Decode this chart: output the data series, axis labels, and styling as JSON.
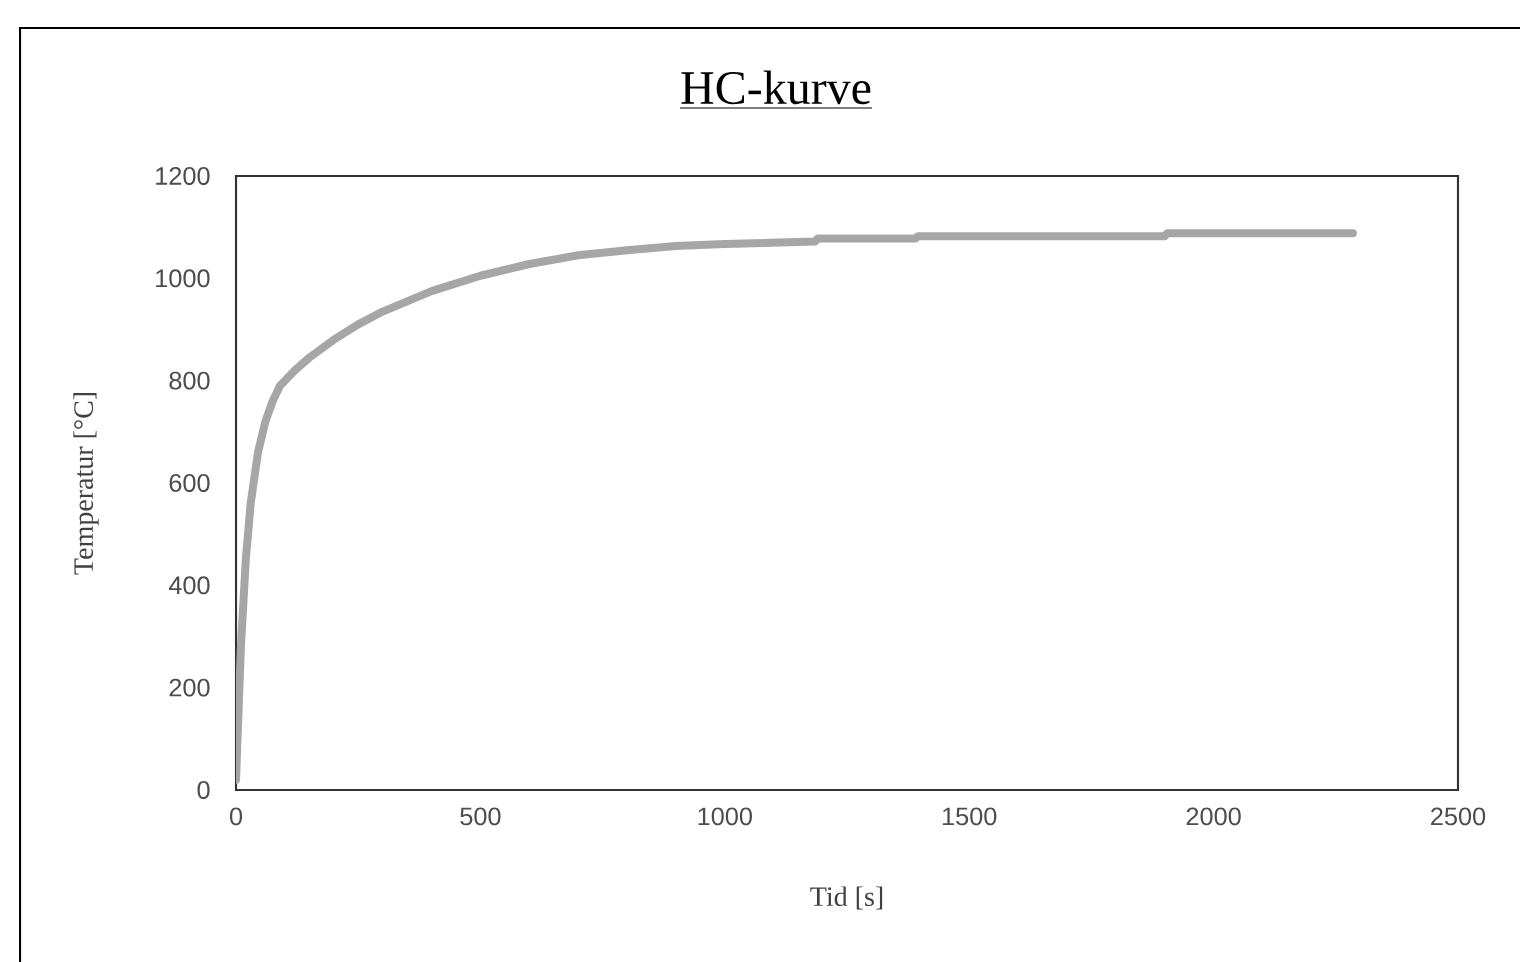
{
  "chart_data": {
    "type": "line",
    "title": "HC-kurve",
    "xlabel": "Tid [s]",
    "ylabel": "Temperatur [°C]",
    "xlim": [
      0,
      2500
    ],
    "xticks": [
      0,
      500,
      1000,
      1500,
      2000,
      2500
    ],
    "ylim": [
      0,
      1200
    ],
    "yticks": [
      0,
      200,
      400,
      600,
      800,
      1000,
      1200
    ],
    "grid": false,
    "legend": false,
    "marker": "none",
    "line_style": "solid",
    "series": [
      {
        "color": "#a6a6a6",
        "x": [
          0,
          10,
          20,
          30,
          45,
          60,
          75,
          90,
          120,
          150,
          200,
          250,
          300,
          400,
          500,
          600,
          700,
          800,
          900,
          1000,
          1185,
          1190,
          1390,
          1395,
          1900,
          1905,
          2285
        ],
        "values": [
          20,
          280,
          450,
          560,
          660,
          720,
          760,
          790,
          820,
          845,
          880,
          910,
          935,
          975,
          1005,
          1028,
          1045,
          1055,
          1063,
          1067,
          1072,
          1078,
          1078,
          1082,
          1082,
          1088,
          1088
        ]
      }
    ]
  }
}
